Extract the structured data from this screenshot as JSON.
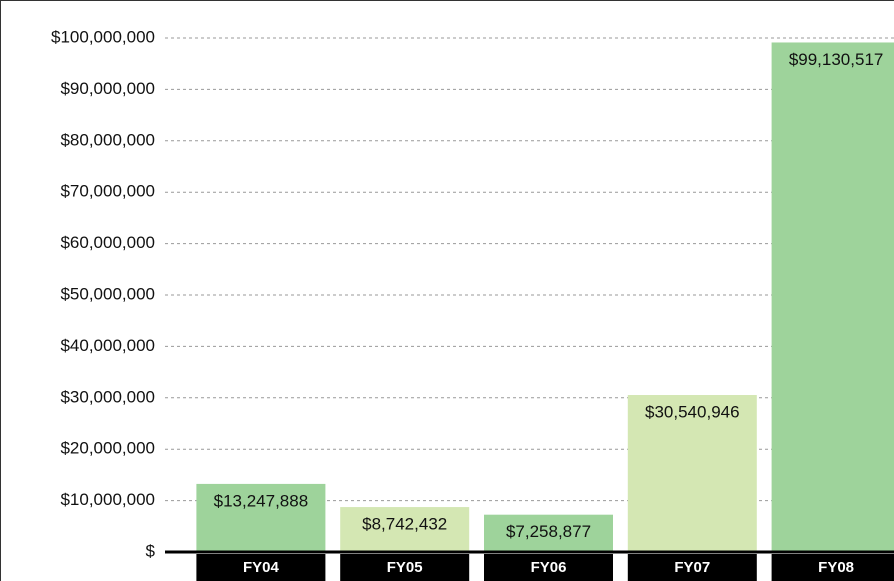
{
  "chart_data": {
    "type": "bar",
    "categories": [
      "FY04",
      "FY05",
      "FY06",
      "FY07",
      "FY08"
    ],
    "values": [
      13247888,
      8742432,
      7258877,
      30540946,
      99130517
    ],
    "value_labels": [
      "$13,247,888",
      "$8,742,432",
      "$7,258,877",
      "$30,540,946",
      "$99,130,517"
    ],
    "colors": [
      "#9ed39b",
      "#d4e7b3",
      "#9ed39b",
      "#d4e7b3",
      "#9ed39b"
    ],
    "ylim": [
      0,
      100000000
    ],
    "yticks": [
      {
        "value": 0,
        "label": "$"
      },
      {
        "value": 10000000,
        "label": "$10,000,000"
      },
      {
        "value": 20000000,
        "label": "$20,000,000"
      },
      {
        "value": 30000000,
        "label": "$30,000,000"
      },
      {
        "value": 40000000,
        "label": "$40,000,000"
      },
      {
        "value": 50000000,
        "label": "$50,000,000"
      },
      {
        "value": 60000000,
        "label": "$60,000,000"
      },
      {
        "value": 70000000,
        "label": "$70,000,000"
      },
      {
        "value": 80000000,
        "label": "$80,000,000"
      },
      {
        "value": 90000000,
        "label": "$90,000,000"
      },
      {
        "value": 100000000,
        "label": "$100,000,000"
      }
    ],
    "grid": true
  }
}
